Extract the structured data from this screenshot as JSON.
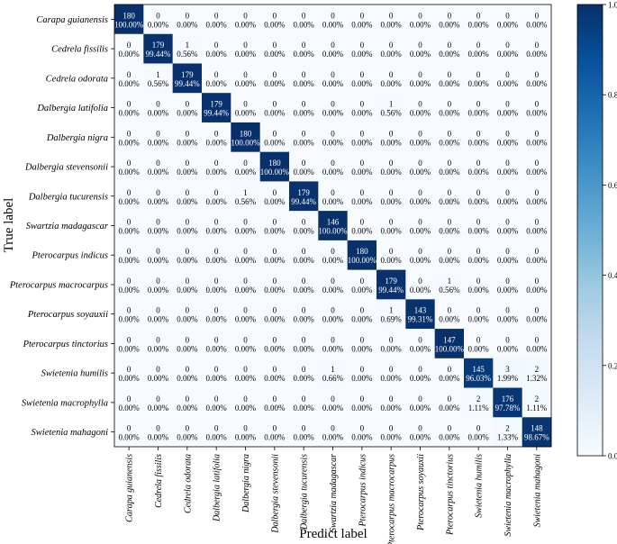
{
  "chart_data": {
    "type": "heatmap",
    "title": "",
    "xlabel": "Predict label",
    "ylabel": "True label",
    "labels": [
      "Carapa guianensis",
      "Cedrela fissilis",
      "Cedrela odorata",
      "Dalbergia latifolia",
      "Dalbergia nigra",
      "Dalbergia stevensonii",
      "Dalbergia tucurensis",
      "Swartzia madagascar",
      "Pterocarpus  indicus",
      "Pterocarpus macrocarpus",
      "Pterocarpus soyauxii",
      "Pterocarpus tinctorius",
      "Swietenia humilis",
      "Swietenia macrophylla",
      "Swietenia mahagoni"
    ],
    "counts": [
      [
        180,
        0,
        0,
        0,
        0,
        0,
        0,
        0,
        0,
        0,
        0,
        0,
        0,
        0,
        0
      ],
      [
        0,
        179,
        1,
        0,
        0,
        0,
        0,
        0,
        0,
        0,
        0,
        0,
        0,
        0,
        0
      ],
      [
        0,
        1,
        179,
        0,
        0,
        0,
        0,
        0,
        0,
        0,
        0,
        0,
        0,
        0,
        0
      ],
      [
        0,
        0,
        0,
        179,
        0,
        0,
        0,
        0,
        0,
        1,
        0,
        0,
        0,
        0,
        0
      ],
      [
        0,
        0,
        0,
        0,
        180,
        0,
        0,
        0,
        0,
        0,
        0,
        0,
        0,
        0,
        0
      ],
      [
        0,
        0,
        0,
        0,
        0,
        180,
        0,
        0,
        0,
        0,
        0,
        0,
        0,
        0,
        0
      ],
      [
        0,
        0,
        0,
        0,
        1,
        0,
        179,
        0,
        0,
        0,
        0,
        0,
        0,
        0,
        0
      ],
      [
        0,
        0,
        0,
        0,
        0,
        0,
        0,
        146,
        0,
        0,
        0,
        0,
        0,
        0,
        0
      ],
      [
        0,
        0,
        0,
        0,
        0,
        0,
        0,
        0,
        180,
        0,
        0,
        0,
        0,
        0,
        0
      ],
      [
        0,
        0,
        0,
        0,
        0,
        0,
        0,
        0,
        0,
        179,
        0,
        1,
        0,
        0,
        0
      ],
      [
        0,
        0,
        0,
        0,
        0,
        0,
        0,
        0,
        0,
        1,
        143,
        0,
        0,
        0,
        0
      ],
      [
        0,
        0,
        0,
        0,
        0,
        0,
        0,
        0,
        0,
        0,
        0,
        147,
        0,
        0,
        0
      ],
      [
        0,
        0,
        0,
        0,
        0,
        0,
        0,
        1,
        0,
        0,
        0,
        0,
        145,
        3,
        2
      ],
      [
        0,
        0,
        0,
        0,
        0,
        0,
        0,
        0,
        0,
        0,
        0,
        0,
        2,
        176,
        2
      ],
      [
        0,
        0,
        0,
        0,
        0,
        0,
        0,
        0,
        0,
        0,
        0,
        0,
        0,
        2,
        148
      ]
    ],
    "percents": [
      [
        "100.00%",
        "0.00%",
        "0.00%",
        "0.00%",
        "0.00%",
        "0.00%",
        "0.00%",
        "0.00%",
        "0.00%",
        "0.00%",
        "0.00%",
        "0.00%",
        "0.00%",
        "0.00%",
        "0.00%"
      ],
      [
        "0.00%",
        "99.44%",
        "0.56%",
        "0.00%",
        "0.00%",
        "0.00%",
        "0.00%",
        "0.00%",
        "0.00%",
        "0.00%",
        "0.00%",
        "0.00%",
        "0.00%",
        "0.00%",
        "0.00%"
      ],
      [
        "0.00%",
        "0.56%",
        "99.44%",
        "0.00%",
        "0.00%",
        "0.00%",
        "0.00%",
        "0.00%",
        "0.00%",
        "0.00%",
        "0.00%",
        "0.00%",
        "0.00%",
        "0.00%",
        "0.00%"
      ],
      [
        "0.00%",
        "0.00%",
        "0.00%",
        "99.44%",
        "0.00%",
        "0.00%",
        "0.00%",
        "0.00%",
        "0.00%",
        "0.56%",
        "0.00%",
        "0.00%",
        "0.00%",
        "0.00%",
        "0.00%"
      ],
      [
        "0.00%",
        "0.00%",
        "0.00%",
        "0.00%",
        "100.00%",
        "0.00%",
        "0.00%",
        "0.00%",
        "0.00%",
        "0.00%",
        "0.00%",
        "0.00%",
        "0.00%",
        "0.00%",
        "0.00%"
      ],
      [
        "0.00%",
        "0.00%",
        "0.00%",
        "0.00%",
        "0.00%",
        "100.00%",
        "0.00%",
        "0.00%",
        "0.00%",
        "0.00%",
        "0.00%",
        "0.00%",
        "0.00%",
        "0.00%",
        "0.00%"
      ],
      [
        "0.00%",
        "0.00%",
        "0.00%",
        "0.00%",
        "0.56%",
        "0.00%",
        "99.44%",
        "0.00%",
        "0.00%",
        "0.00%",
        "0.00%",
        "0.00%",
        "0.00%",
        "0.00%",
        "0.00%"
      ],
      [
        "0.00%",
        "0.00%",
        "0.00%",
        "0.00%",
        "0.00%",
        "0.00%",
        "0.00%",
        "100.00%",
        "0.00%",
        "0.00%",
        "0.00%",
        "0.00%",
        "0.00%",
        "0.00%",
        "0.00%"
      ],
      [
        "0.00%",
        "0.00%",
        "0.00%",
        "0.00%",
        "0.00%",
        "0.00%",
        "0.00%",
        "0.00%",
        "100.00%",
        "0.00%",
        "0.00%",
        "0.00%",
        "0.00%",
        "0.00%",
        "0.00%"
      ],
      [
        "0.00%",
        "0.00%",
        "0.00%",
        "0.00%",
        "0.00%",
        "0.00%",
        "0.00%",
        "0.00%",
        "0.00%",
        "99.44%",
        "0.00%",
        "0.56%",
        "0.00%",
        "0.00%",
        "0.00%"
      ],
      [
        "0.00%",
        "0.00%",
        "0.00%",
        "0.00%",
        "0.00%",
        "0.00%",
        "0.00%",
        "0.00%",
        "0.00%",
        "0.69%",
        "99.31%",
        "0.00%",
        "0.00%",
        "0.00%",
        "0.00%"
      ],
      [
        "0.00%",
        "0.00%",
        "0.00%",
        "0.00%",
        "0.00%",
        "0.00%",
        "0.00%",
        "0.00%",
        "0.00%",
        "0.00%",
        "0.00%",
        "100.00%",
        "0.00%",
        "0.00%",
        "0.00%"
      ],
      [
        "0.00%",
        "0.00%",
        "0.00%",
        "0.00%",
        "0.00%",
        "0.00%",
        "0.00%",
        "0.66%",
        "0.00%",
        "0.00%",
        "0.00%",
        "0.00%",
        "96.03%",
        "1.99%",
        "1.32%"
      ],
      [
        "0.00%",
        "0.00%",
        "0.00%",
        "0.00%",
        "0.00%",
        "0.00%",
        "0.00%",
        "0.00%",
        "0.00%",
        "0.00%",
        "0.00%",
        "0.00%",
        "1.11%",
        "97.78%",
        "1.11%"
      ],
      [
        "0.00%",
        "0.00%",
        "0.00%",
        "0.00%",
        "0.00%",
        "0.00%",
        "0.00%",
        "0.00%",
        "0.00%",
        "0.00%",
        "0.00%",
        "0.00%",
        "0.00%",
        "1.33%",
        "98.67%"
      ]
    ],
    "colorbar": {
      "range": [
        0.0,
        1.0
      ],
      "ticks": [
        "0.0",
        "0.2",
        "0.4",
        "0.6",
        "0.8",
        "1.0"
      ],
      "colormap": "Blues",
      "color_low": "#f7fbff",
      "color_high": "#08306b"
    },
    "grid": false,
    "legend": "colorbar-right"
  }
}
